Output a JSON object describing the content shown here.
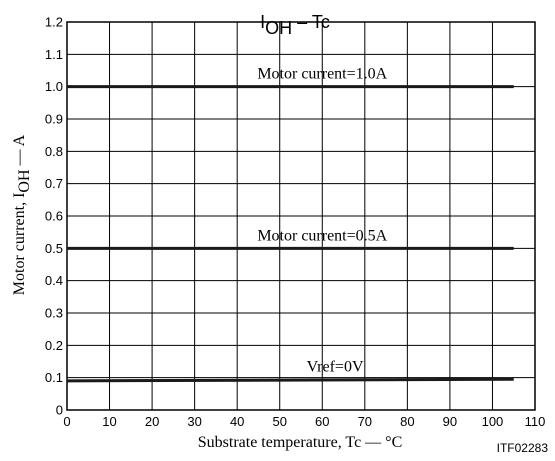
{
  "chart_data": {
    "type": "line",
    "title_main": "I",
    "title_sub": "OH",
    "title_rest": " – Tc",
    "xlabel": "Substrate temperature,  Tc — °C",
    "ylabel_main": "Motor current,  I",
    "ylabel_sub": "OH",
    "ylabel_rest": " — A",
    "xlim": [
      0,
      110
    ],
    "ylim": [
      0,
      1.2
    ],
    "xticks": [
      "0",
      "10",
      "20",
      "30",
      "40",
      "50",
      "60",
      "70",
      "80",
      "90",
      "100",
      "110"
    ],
    "yticks": [
      "0",
      "0.1",
      "0.2",
      "0.3",
      "0.4",
      "0.5",
      "0.6",
      "0.7",
      "0.8",
      "0.9",
      "1.0",
      "1.1",
      "1.2"
    ],
    "grid": true,
    "series": [
      {
        "label": "Motor current=1.0A",
        "label_x": 60,
        "x": [
          0,
          105
        ],
        "y": [
          1.0,
          1.0
        ]
      },
      {
        "label": "Motor current=0.5A",
        "label_x": 60,
        "x": [
          0,
          105
        ],
        "y": [
          0.5,
          0.5
        ]
      },
      {
        "label": "Vref=0V",
        "label_x": 63,
        "x": [
          0,
          105
        ],
        "y": [
          0.09,
          0.095
        ]
      }
    ],
    "figure_code": "ITF02283"
  }
}
